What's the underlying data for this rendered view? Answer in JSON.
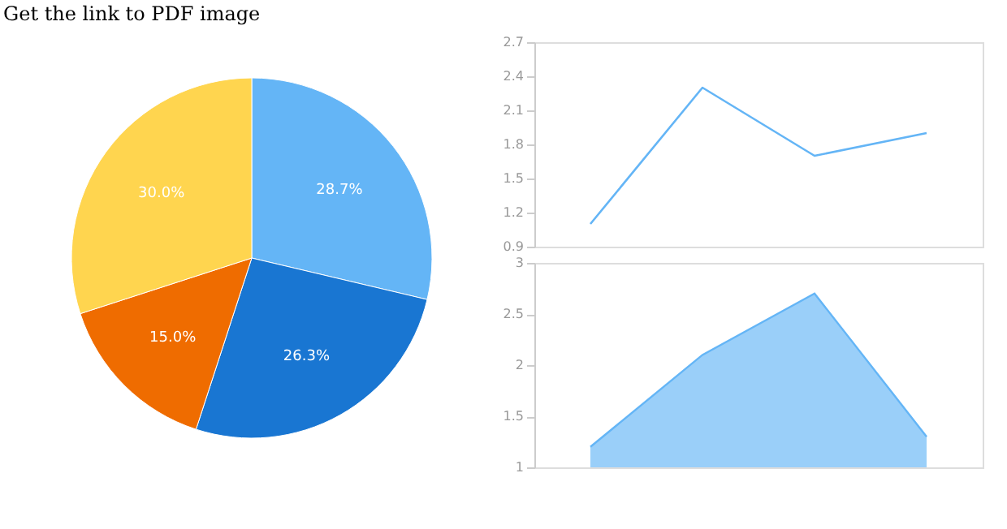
{
  "chart_data": [
    {
      "type": "pie",
      "categories": [
        null,
        null,
        null,
        null
      ],
      "values": [
        28.7,
        26.3,
        15.0,
        30.0
      ],
      "colors": [
        "#64b5f6",
        "#1976d2",
        "#ef6c00",
        "#ffd54f"
      ],
      "value_labels": [
        "28.7%",
        "26.3%",
        "15.0%",
        "30.0%"
      ],
      "annotations": [
        "Get the link to PDF image"
      ]
    },
    {
      "type": "line",
      "categories": [
        null,
        null,
        null,
        null
      ],
      "series": [
        {
          "color": "#64b5f6",
          "values": [
            1.1,
            2.3,
            1.7,
            1.9
          ]
        }
      ],
      "ylim": [
        0.9,
        2.7
      ],
      "yticks": [
        0.9,
        1.2,
        1.5,
        1.8,
        2.1,
        2.4,
        2.7
      ],
      "tick_labels": "y"
    },
    {
      "type": "area",
      "categories": [
        null,
        null,
        null,
        null
      ],
      "series": [
        {
          "color": "#64b5f6",
          "values": [
            1.2,
            2.1,
            2.7,
            1.3
          ]
        }
      ],
      "ylim": [
        1,
        3
      ],
      "yticks": [
        1,
        1.5,
        2,
        2.5,
        3
      ],
      "tick_labels": "y"
    }
  ]
}
